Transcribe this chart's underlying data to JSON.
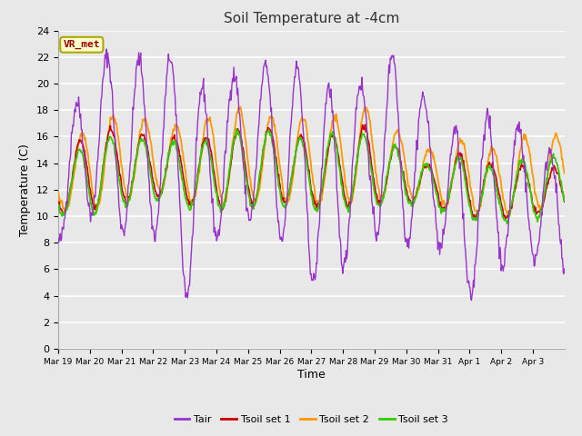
{
  "title": "Soil Temperature at -4cm",
  "xlabel": "Time",
  "ylabel": "Temperature (C)",
  "ylim": [
    0,
    24
  ],
  "yticks": [
    0,
    2,
    4,
    6,
    8,
    10,
    12,
    14,
    16,
    18,
    20,
    22,
    24
  ],
  "fig_bg_color": "#e8e8e8",
  "plot_bg_color": "#e8e8e8",
  "grid_color": "#ffffff",
  "annotation_text": "VR_met",
  "annotation_bg": "#ffffcc",
  "annotation_border": "#aaa800",
  "annotation_text_color": "#990000",
  "colors": {
    "Tair": "#9933cc",
    "Tsoil set 1": "#cc0000",
    "Tsoil set 2": "#ff9900",
    "Tsoil set 3": "#33cc00"
  },
  "legend_labels": [
    "Tair",
    "Tsoil set 1",
    "Tsoil set 2",
    "Tsoil set 3"
  ],
  "day_labels": [
    "Mar 19",
    "Mar 20",
    "Mar 21",
    "Mar 22",
    "Mar 23",
    "Mar 24",
    "Mar 25",
    "Mar 26",
    "Mar 27",
    "Mar 28",
    "Mar 29",
    "Mar 30",
    "Mar 31",
    "Apr 1",
    "Apr 2",
    "Apr 3"
  ],
  "tair_peaks": [
    13.4,
    23.0,
    21.0,
    23.2,
    19.5,
    20.5,
    21.3,
    21.3,
    19.8,
    20.0,
    22.6,
    18.2,
    16.0,
    18.1,
    16.1,
    14.2
  ],
  "tair_troughs": [
    8.0,
    10.2,
    8.8,
    8.5,
    3.0,
    10.5,
    9.5,
    7.5,
    3.0,
    9.8,
    7.2,
    9.5,
    3.3,
    6.2,
    7.0,
    5.2
  ],
  "ts1_peaks": [
    13.4,
    17.0,
    16.2,
    16.0,
    15.8,
    16.2,
    16.8,
    16.0,
    16.1,
    16.8,
    15.2,
    13.8,
    14.8,
    13.8,
    13.8,
    13.5
  ],
  "ts1_troughs": [
    10.2,
    10.5,
    11.0,
    11.5,
    10.8,
    10.5,
    11.0,
    11.0,
    10.5,
    11.0,
    11.0,
    11.0,
    10.0,
    9.8,
    10.0,
    10.5
  ],
  "ts2_peaks": [
    13.4,
    17.5,
    17.5,
    17.2,
    16.5,
    18.5,
    17.5,
    17.5,
    17.2,
    18.5,
    16.5,
    15.0,
    15.8,
    15.0,
    16.2,
    16.0
  ],
  "ts2_troughs": [
    10.5,
    10.5,
    11.2,
    12.0,
    11.0,
    11.0,
    11.2,
    11.0,
    10.8,
    11.2,
    11.5,
    11.0,
    10.5,
    10.0,
    10.5,
    11.0
  ],
  "ts3_peaks": [
    13.0,
    16.2,
    15.8,
    15.8,
    15.2,
    16.2,
    16.5,
    15.8,
    16.2,
    16.2,
    15.2,
    13.8,
    14.5,
    13.5,
    14.5,
    14.5
  ],
  "ts3_troughs": [
    10.0,
    10.2,
    10.8,
    11.2,
    10.5,
    10.5,
    10.8,
    10.8,
    10.2,
    10.8,
    10.8,
    10.8,
    9.8,
    9.5,
    9.8,
    10.2
  ],
  "n_points": 768,
  "seed": 42
}
